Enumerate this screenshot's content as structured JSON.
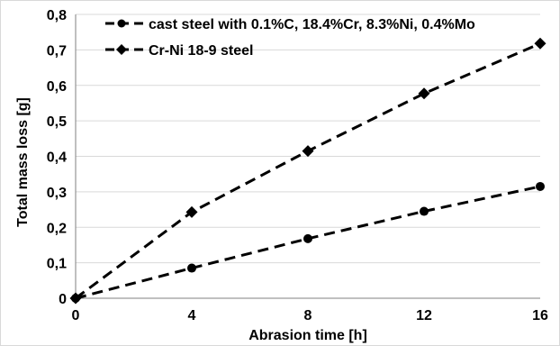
{
  "chart_data": {
    "type": "line",
    "title": "",
    "xlabel": "Abrasion time [h]",
    "ylabel": "Total mass loss [g]",
    "x": [
      0,
      4,
      8,
      12,
      16
    ],
    "xticks": [
      "0",
      "4",
      "8",
      "12",
      "16"
    ],
    "xlim": [
      0,
      16
    ],
    "ylim": [
      0,
      0.8
    ],
    "yticks": [
      "0",
      "0,1",
      "0,2",
      "0,3",
      "0,4",
      "0,5",
      "0,6",
      "0,7",
      "0,8"
    ],
    "grid": "horizontal",
    "legend_position": "top-left",
    "series": [
      {
        "name": "cast steel with 0.1%C, 18.4%Cr, 8.3%Ni, 0.4%Mo",
        "marker": "circle",
        "line": "dashed",
        "color": "#000000",
        "values": [
          0.0,
          0.085,
          0.168,
          0.245,
          0.315
        ]
      },
      {
        "name": "Cr-Ni 18-9 steel",
        "marker": "diamond",
        "line": "dashed",
        "color": "#000000",
        "values": [
          0.0,
          0.243,
          0.415,
          0.577,
          0.718
        ]
      }
    ]
  }
}
